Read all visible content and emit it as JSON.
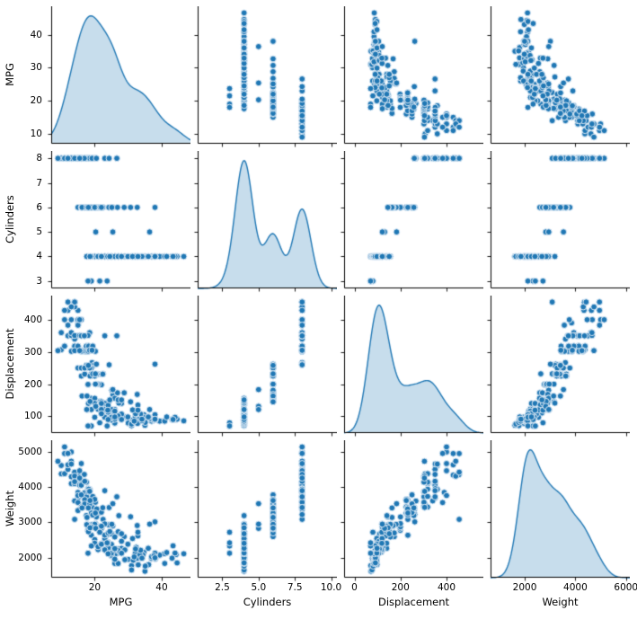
{
  "chart_data": {
    "type": "scatter",
    "variant": "pairplot-matrix",
    "diagonal": "kde",
    "grid": false,
    "legend": "none",
    "style": {
      "dot_color": "#1f77b4",
      "dot_edge_color": "#dce9f5",
      "dot_radius": 3.4,
      "kde_line_color": "#1f77b4",
      "kde_fill_color": "#1f77b4",
      "kde_fill_alpha": 0.25,
      "spine_color": "#000000",
      "background": "#ffffff"
    },
    "variables": [
      {
        "name": "MPG",
        "xlim": [
          7.0,
          48.6
        ],
        "ylim": [
          7.0,
          48.6
        ],
        "xticks": [
          20,
          40
        ],
        "xtick_labels": [
          "20",
          "40"
        ],
        "yticks": [
          10,
          20,
          30,
          40
        ],
        "ytick_labels": [
          "10",
          "20",
          "30",
          "40"
        ]
      },
      {
        "name": "Cylinders",
        "xlim": [
          0.8,
          10.4
        ],
        "ylim": [
          2.7,
          8.3
        ],
        "xticks": [
          2.5,
          5.0,
          7.5,
          10.0
        ],
        "xtick_labels": [
          "2.5",
          "5.0",
          "7.5",
          "10.0"
        ],
        "yticks": [
          3,
          4,
          5,
          6,
          7,
          8
        ],
        "ytick_labels": [
          "3",
          "4",
          "5",
          "6",
          "7",
          "8"
        ]
      },
      {
        "name": "Displacement",
        "xlim": [
          -45,
          560
        ],
        "ylim": [
          48,
          475
        ],
        "xticks": [
          0,
          200,
          400
        ],
        "xtick_labels": [
          "0",
          "200",
          "400"
        ],
        "yticks": [
          100,
          200,
          300,
          400
        ],
        "ytick_labels": [
          "100",
          "200",
          "300",
          "400"
        ]
      },
      {
        "name": "Weight",
        "xlim": [
          650,
          6150
        ],
        "ylim": [
          1430,
          5330
        ],
        "xticks": [
          2000,
          4000,
          6000
        ],
        "xtick_labels": [
          "2000",
          "4000",
          "6000"
        ],
        "yticks": [
          2000,
          3000,
          4000,
          5000
        ],
        "ytick_labels": [
          "2000",
          "3000",
          "4000",
          "5000"
        ]
      }
    ],
    "columns": [
      "MPG",
      "Cylinders",
      "Displacement",
      "Weight"
    ],
    "points": [
      [
        18,
        8,
        307,
        3504
      ],
      [
        15,
        8,
        350,
        3693
      ],
      [
        18,
        8,
        318,
        3436
      ],
      [
        16,
        8,
        304,
        3433
      ],
      [
        17,
        8,
        302,
        3449
      ],
      [
        15,
        8,
        429,
        4341
      ],
      [
        14,
        8,
        454,
        4354
      ],
      [
        14,
        8,
        440,
        4312
      ],
      [
        14,
        8,
        455,
        4425
      ],
      [
        15,
        8,
        390,
        3850
      ],
      [
        14,
        8,
        340,
        3609
      ],
      [
        15,
        8,
        400,
        3761
      ],
      [
        14,
        8,
        455,
        3086
      ],
      [
        10,
        8,
        360,
        4615
      ],
      [
        10,
        8,
        307,
        4376
      ],
      [
        11,
        8,
        318,
        4382
      ],
      [
        9,
        8,
        304,
        4732
      ],
      [
        13,
        8,
        350,
        4100
      ],
      [
        12,
        8,
        350,
        4502
      ],
      [
        13,
        8,
        400,
        4997
      ],
      [
        13,
        8,
        351,
        4657
      ],
      [
        14,
        8,
        318,
        4096
      ],
      [
        13,
        8,
        302,
        4294
      ],
      [
        14,
        8,
        304,
        4312
      ],
      [
        12,
        8,
        429,
        4633
      ],
      [
        13,
        8,
        440,
        4735
      ],
      [
        12,
        8,
        455,
        4951
      ],
      [
        13,
        8,
        360,
        4654
      ],
      [
        15,
        8,
        318,
        4135
      ],
      [
        16,
        8,
        400,
        4668
      ],
      [
        16,
        8,
        351,
        4129
      ],
      [
        15,
        8,
        383,
        3563
      ],
      [
        14,
        8,
        351,
        4154
      ],
      [
        17,
        8,
        305,
        3840
      ],
      [
        18.5,
        8,
        360,
        3940
      ],
      [
        17.5,
        8,
        318,
        4140
      ],
      [
        16,
        8,
        302,
        4141
      ],
      [
        15.5,
        8,
        351,
        4054
      ],
      [
        15.5,
        8,
        400,
        4464
      ],
      [
        16,
        8,
        350,
        4055
      ],
      [
        17,
        8,
        350,
        4165
      ],
      [
        18,
        8,
        351,
        3955
      ],
      [
        17.6,
        8,
        302,
        3725
      ],
      [
        19.2,
        8,
        267,
        3605
      ],
      [
        18.2,
        8,
        318,
        3940
      ],
      [
        18.1,
        8,
        302,
        3870
      ],
      [
        19.4,
        8,
        318,
        3735
      ],
      [
        20.2,
        8,
        302,
        3570
      ],
      [
        19.9,
        8,
        260,
        3365
      ],
      [
        18.5,
        8,
        305,
        3880
      ],
      [
        23,
        8,
        350,
        3900
      ],
      [
        26.6,
        8,
        350,
        3725
      ],
      [
        16.9,
        8,
        350,
        4360
      ],
      [
        15.5,
        8,
        304,
        4257
      ],
      [
        19.2,
        8,
        305,
        3425
      ],
      [
        20.5,
        8,
        262,
        3221
      ],
      [
        24.3,
        8,
        260,
        3420
      ],
      [
        11,
        8,
        429,
        4952
      ],
      [
        11,
        8,
        400,
        5140
      ],
      [
        12,
        8,
        383,
        4955
      ],
      [
        18,
        6,
        199,
        2774
      ],
      [
        22,
        6,
        198,
        2833
      ],
      [
        21,
        6,
        200,
        2875
      ],
      [
        19,
        6,
        232,
        2634
      ],
      [
        16,
        6,
        225,
        3439
      ],
      [
        17,
        6,
        231,
        3645
      ],
      [
        15,
        6,
        250,
        3336
      ],
      [
        18,
        6,
        250,
        3432
      ],
      [
        17.5,
        6,
        258,
        3193
      ],
      [
        19,
        6,
        250,
        3282
      ],
      [
        16,
        6,
        250,
        3781
      ],
      [
        17,
        6,
        250,
        3520
      ],
      [
        21,
        6,
        231,
        3245
      ],
      [
        19,
        6,
        225,
        3264
      ],
      [
        22.5,
        6,
        232,
        3085
      ],
      [
        20,
        6,
        225,
        3651
      ],
      [
        18.5,
        6,
        250,
        3525
      ],
      [
        22,
        6,
        231,
        3288
      ],
      [
        20.5,
        6,
        200,
        3155
      ],
      [
        20.2,
        6,
        200,
        2965
      ],
      [
        25.4,
        6,
        168,
        2900
      ],
      [
        24.2,
        6,
        146,
        2930
      ],
      [
        22.4,
        6,
        231,
        3415
      ],
      [
        20.6,
        6,
        231,
        3380
      ],
      [
        28.8,
        6,
        173,
        2595
      ],
      [
        26.8,
        6,
        173,
        2700
      ],
      [
        18.6,
        6,
        225,
        3620
      ],
      [
        19.4,
        6,
        232,
        3210
      ],
      [
        20.2,
        6,
        232,
        3265
      ],
      [
        25.1,
        6,
        181,
        2945
      ],
      [
        32.7,
        6,
        168,
        2910
      ],
      [
        30.7,
        6,
        145,
        3160
      ],
      [
        38,
        6,
        262,
        3015
      ],
      [
        19,
        6,
        156,
        2930
      ],
      [
        20,
        6,
        156,
        2945
      ],
      [
        16.2,
        6,
        163,
        3410
      ],
      [
        17.7,
        6,
        163,
        3140
      ],
      [
        18.1,
        6,
        258,
        3410
      ],
      [
        21.6,
        6,
        146,
        2815
      ],
      [
        22,
        6,
        145,
        2835
      ],
      [
        24,
        4,
        113,
        2372
      ],
      [
        27,
        4,
        97,
        2130
      ],
      [
        26,
        4,
        97,
        1835
      ],
      [
        25,
        4,
        110,
        2672
      ],
      [
        24,
        4,
        107,
        2430
      ],
      [
        25,
        4,
        104,
        2375
      ],
      [
        26,
        4,
        121,
        2234
      ],
      [
        27,
        4,
        97,
        2245
      ],
      [
        28,
        4,
        140,
        2264
      ],
      [
        25,
        4,
        90,
        2223
      ],
      [
        25,
        4,
        98,
        2046
      ],
      [
        23,
        4,
        120,
        2506
      ],
      [
        20,
        4,
        97,
        2511
      ],
      [
        21,
        4,
        122,
        2226
      ],
      [
        24,
        4,
        116,
        2158
      ],
      [
        26,
        4,
        79,
        2074
      ],
      [
        25,
        4,
        88,
        2065
      ],
      [
        23,
        4,
        120,
        2957
      ],
      [
        30,
        4,
        79,
        1950
      ],
      [
        31,
        4,
        71,
        1773
      ],
      [
        35,
        4,
        72,
        1613
      ],
      [
        27,
        4,
        97,
        1834
      ],
      [
        26,
        4,
        91,
        1955
      ],
      [
        24,
        4,
        113,
        2278
      ],
      [
        25,
        4,
        97,
        2126
      ],
      [
        29,
        4,
        97,
        1940
      ],
      [
        23,
        4,
        122,
        2220
      ],
      [
        20,
        4,
        140,
        2408
      ],
      [
        21,
        4,
        122,
        2310
      ],
      [
        22,
        4,
        121,
        2395
      ],
      [
        18,
        4,
        121,
        2933
      ],
      [
        19,
        4,
        121,
        2868
      ],
      [
        24,
        4,
        121,
        2660
      ],
      [
        29,
        4,
        98,
        2219
      ],
      [
        23,
        4,
        97,
        2545
      ],
      [
        23,
        4,
        140,
        2639
      ],
      [
        22,
        4,
        108,
        2379
      ],
      [
        25,
        4,
        121,
        2671
      ],
      [
        28,
        4,
        107,
        2464
      ],
      [
        27,
        4,
        101,
        2202
      ],
      [
        26,
        4,
        116,
        2220
      ],
      [
        24,
        4,
        134,
        2702
      ],
      [
        26,
        4,
        98,
        2255
      ],
      [
        31,
        4,
        76,
        1649
      ],
      [
        32,
        4,
        83,
        2003
      ],
      [
        28,
        4,
        90,
        2125
      ],
      [
        24,
        4,
        90,
        2108
      ],
      [
        26,
        4,
        156,
        2585
      ],
      [
        31.5,
        4,
        89,
        1925
      ],
      [
        33,
        4,
        91,
        1795
      ],
      [
        40.8,
        4,
        85,
        2110
      ],
      [
        44.3,
        4,
        90,
        2085
      ],
      [
        43.1,
        4,
        90,
        1985
      ],
      [
        36.1,
        4,
        98,
        1800
      ],
      [
        32.8,
        4,
        78,
        1985
      ],
      [
        39.4,
        4,
        85,
        2070
      ],
      [
        36.1,
        4,
        91,
        1800
      ],
      [
        35.1,
        4,
        81,
        1760
      ],
      [
        32.1,
        4,
        98,
        2120
      ],
      [
        37.2,
        4,
        86,
        2019
      ],
      [
        31.8,
        4,
        85,
        2020
      ],
      [
        37,
        4,
        85,
        1975
      ],
      [
        34.1,
        4,
        86,
        1975
      ],
      [
        34.7,
        4,
        105,
        2150
      ],
      [
        34.4,
        4,
        98,
        2075
      ],
      [
        29.9,
        4,
        98,
        2380
      ],
      [
        33.5,
        4,
        98,
        2086
      ],
      [
        38.1,
        4,
        89,
        1968
      ],
      [
        32.9,
        4,
        135,
        2615
      ],
      [
        33.7,
        4,
        107,
        2210
      ],
      [
        32.4,
        4,
        107,
        2290
      ],
      [
        32.2,
        4,
        108,
        2245
      ],
      [
        31.3,
        4,
        120,
        2542
      ],
      [
        38,
        4,
        105,
        2125
      ],
      [
        37,
        4,
        91,
        2025
      ],
      [
        37.7,
        4,
        89,
        2050
      ],
      [
        34.1,
        4,
        91,
        1985
      ],
      [
        38,
        4,
        91,
        1995
      ],
      [
        46.6,
        4,
        86,
        2110
      ],
      [
        40.9,
        4,
        85,
        1835
      ],
      [
        44.6,
        4,
        91,
        1850
      ],
      [
        41.5,
        4,
        98,
        2144
      ],
      [
        44,
        4,
        97,
        2130
      ],
      [
        43.4,
        4,
        90,
        2335
      ],
      [
        36,
        4,
        98,
        2265
      ],
      [
        32.9,
        4,
        119,
        2720
      ],
      [
        18.1,
        4,
        140,
        2735
      ],
      [
        22,
        4,
        140,
        2890
      ],
      [
        23.9,
        4,
        119,
        2405
      ],
      [
        27.2,
        4,
        141,
        3190
      ],
      [
        27,
        4,
        151,
        2735
      ],
      [
        24.5,
        4,
        151,
        2740
      ],
      [
        17.6,
        4,
        121,
        2935
      ],
      [
        18.6,
        4,
        146,
        2845
      ],
      [
        28,
        4,
        151,
        2678
      ],
      [
        20.3,
        5,
        131,
        2830
      ],
      [
        25.4,
        5,
        183,
        3530
      ],
      [
        36.4,
        5,
        121,
        2950
      ],
      [
        19,
        3,
        70,
        2330
      ],
      [
        18,
        3,
        70,
        2124
      ],
      [
        21.5,
        3,
        80,
        2720
      ],
      [
        23.7,
        3,
        70,
        2420
      ]
    ]
  }
}
